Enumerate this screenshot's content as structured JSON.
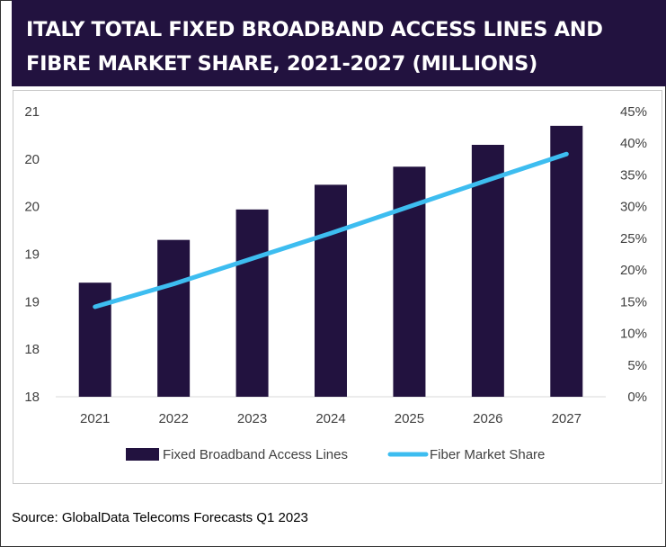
{
  "title": "ITALY TOTAL FIXED BROADBAND ACCESS LINES AND FIBRE MARKET SHARE, 2021-2027 (MILLIONS)",
  "source": "Source: GlobalData Telecoms Forecasts Q1 2023",
  "colors": {
    "title_bg": "#22123f",
    "bar": "#22123f",
    "line": "#3dbdf0",
    "axis": "#d9d9d9"
  },
  "chart_data": {
    "type": "bar",
    "title": "ITALY TOTAL FIXED BROADBAND ACCESS LINES AND FIBRE MARKET SHARE, 2021-2027 (MILLIONS)",
    "categories": [
      "2021",
      "2022",
      "2023",
      "2024",
      "2025",
      "2026",
      "2027"
    ],
    "y_ticks": [
      "21",
      "20",
      "20",
      "19",
      "19",
      "18",
      "18"
    ],
    "y2_ticks": [
      "45%",
      "40%",
      "35%",
      "30%",
      "25%",
      "20%",
      "15%",
      "10%",
      "5%",
      "0%"
    ],
    "ylim": [
      17.5,
      20.5
    ],
    "y2lim": [
      0,
      45
    ],
    "grid": false,
    "legend": "bottom",
    "series": [
      {
        "name": "Fixed Broadband Access Lines",
        "type": "bar",
        "axis": "left",
        "values": [
          18.7,
          19.15,
          19.47,
          19.73,
          19.92,
          20.15,
          20.35
        ]
      },
      {
        "name": "Fiber Market Share",
        "type": "line",
        "axis": "right",
        "values": [
          14.2,
          17.8,
          21.8,
          25.8,
          30.0,
          34.2,
          38.3
        ]
      }
    ]
  }
}
